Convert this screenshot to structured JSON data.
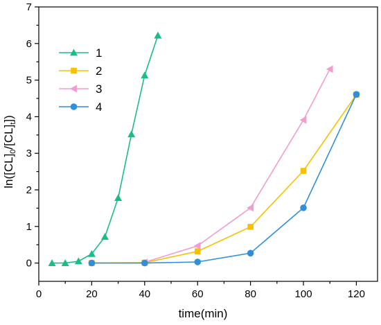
{
  "chart_data": {
    "type": "line",
    "xlabel": "time(min)",
    "ylabel": {
      "prefix": "ln([CL]",
      "sub0": "0",
      "mid": "/[CL]",
      "subt": "t",
      "suffix": "])"
    },
    "xlim": [
      0,
      128
    ],
    "ylim": [
      -0.5,
      7
    ],
    "xticks": [
      0,
      20,
      40,
      60,
      80,
      100,
      120
    ],
    "yticks": [
      0,
      1,
      2,
      3,
      4,
      5,
      6,
      7
    ],
    "legend_position": "top-left",
    "series": [
      {
        "name": "1",
        "color": "#1abc8a",
        "marker": "triangle-up",
        "x": [
          5,
          10,
          15,
          20,
          25,
          30,
          35,
          40,
          45
        ],
        "y": [
          0.0,
          0.0,
          0.05,
          0.25,
          0.72,
          1.78,
          3.52,
          5.13,
          6.22
        ]
      },
      {
        "name": "2",
        "color": "#f6c200",
        "marker": "square",
        "x": [
          20,
          40,
          60,
          80,
          100,
          120
        ],
        "y": [
          0.0,
          0.01,
          0.32,
          0.99,
          2.52,
          4.6
        ]
      },
      {
        "name": "3",
        "color": "#f39ccf",
        "marker": "triangle-left",
        "x": [
          40,
          60,
          80,
          100,
          110
        ],
        "y": [
          0.02,
          0.47,
          1.51,
          3.91,
          5.3
        ]
      },
      {
        "name": "4",
        "color": "#2f8fd8",
        "marker": "circle",
        "x": [
          20,
          40,
          60,
          80,
          100,
          120
        ],
        "y": [
          0.0,
          0.0,
          0.03,
          0.27,
          1.51,
          4.61
        ]
      }
    ]
  }
}
